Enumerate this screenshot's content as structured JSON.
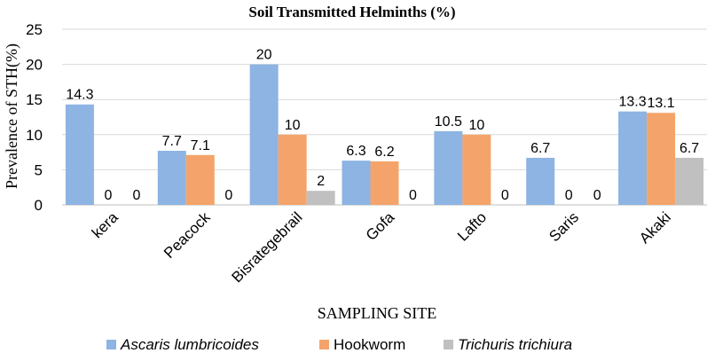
{
  "chart_data": {
    "type": "bar",
    "title": "Soil Transmitted Helminths (%)",
    "xlabel": "SAMPLING SITE",
    "ylabel": "Prevalence of STH(%)",
    "ylim": [
      0,
      25
    ],
    "yticks": [
      0,
      5,
      10,
      15,
      20,
      25
    ],
    "grid": true,
    "legend_position": "bottom",
    "categories": [
      "kera",
      "Peacock",
      "Bisrategebrail",
      "Gofa",
      "Lafto",
      "Saris",
      "Akaki"
    ],
    "series": [
      {
        "name": "Ascaris lumbricoides",
        "italic": true,
        "color": "#8db4e2",
        "values": [
          14.3,
          7.7,
          20,
          6.3,
          10.5,
          6.7,
          13.3
        ]
      },
      {
        "name": "Hookworm",
        "italic": false,
        "color": "#f4a46a",
        "values": [
          0,
          7.1,
          10,
          6.2,
          10,
          0,
          13.1
        ]
      },
      {
        "name": "Trichuris trichiura",
        "italic": true,
        "color": "#c0c0c0",
        "values": [
          0,
          0,
          2,
          0,
          0,
          0,
          6.7
        ]
      }
    ]
  }
}
